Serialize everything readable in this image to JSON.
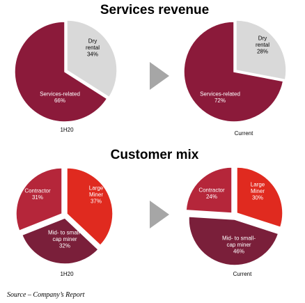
{
  "chart_data": [
    {
      "type": "pie",
      "title": "Services revenue",
      "caption": "1H20",
      "slices": [
        {
          "label_lines": [
            "Dry",
            "rental",
            "34%"
          ],
          "value": 34,
          "color": "#d9d9d9",
          "text_color": "#000000"
        },
        {
          "label_lines": [
            "Services-related",
            "66%"
          ],
          "value": 66,
          "color": "#8b1a3a",
          "text_color": "#ffffff"
        }
      ]
    },
    {
      "type": "pie",
      "title": "",
      "caption": "Current",
      "slices": [
        {
          "label_lines": [
            "Dry",
            "rental",
            "28%"
          ],
          "value": 28,
          "color": "#d9d9d9",
          "text_color": "#000000"
        },
        {
          "label_lines": [
            "Services-related",
            "72%"
          ],
          "value": 72,
          "color": "#8b1a3a",
          "text_color": "#ffffff"
        }
      ]
    },
    {
      "type": "pie",
      "title": "Customer mix",
      "caption": "1H20",
      "slices": [
        {
          "label_lines": [
            "Large",
            "Miner",
            "37%"
          ],
          "value": 37,
          "color": "#e02a1f",
          "text_color": "#ffffff"
        },
        {
          "label_lines": [
            "Mid- to small-",
            "cap miner",
            "32%"
          ],
          "value": 32,
          "color": "#7a1f3a",
          "text_color": "#ffffff"
        },
        {
          "label_lines": [
            "Contractor",
            "31%"
          ],
          "value": 31,
          "color": "#b5263a",
          "text_color": "#ffffff"
        }
      ]
    },
    {
      "type": "pie",
      "title": "",
      "caption": "Current",
      "slices": [
        {
          "label_lines": [
            "Large",
            "Miner",
            "30%"
          ],
          "value": 30,
          "color": "#e02a1f",
          "text_color": "#ffffff"
        },
        {
          "label_lines": [
            "Mid- to small-",
            "cap miner",
            "46%"
          ],
          "value": 46,
          "color": "#7a1f3a",
          "text_color": "#ffffff"
        },
        {
          "label_lines": [
            "Contractor",
            "24%"
          ],
          "value": 24,
          "color": "#b5263a",
          "text_color": "#ffffff"
        }
      ]
    }
  ],
  "headings": {
    "services_revenue": "Services revenue",
    "customer_mix": "Customer mix"
  },
  "arrow_color": "#a6a6a6",
  "source_note": "Source – Company’s Report"
}
